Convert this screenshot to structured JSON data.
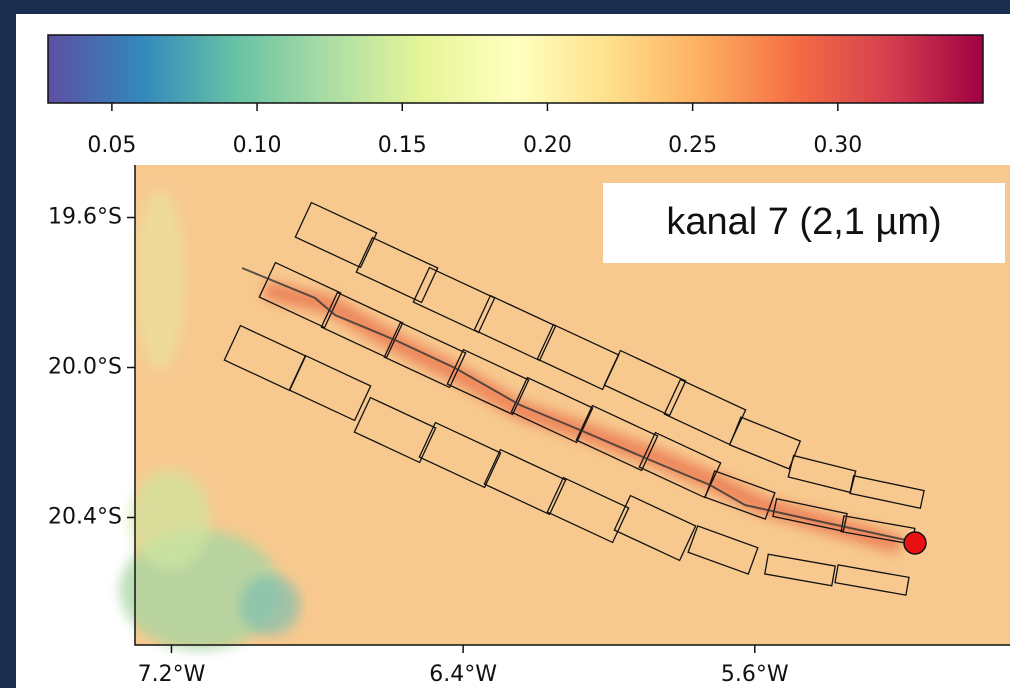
{
  "chart_data": {
    "type": "heatmap",
    "annotation": "kanal 7 (2,1 µm)",
    "colorbar": {
      "lim": [
        0.028,
        0.35
      ],
      "ticks": [
        0.05,
        {
          "value": 0.1,
          "label": "0.10"
        },
        0.15,
        {
          "value": 0.2,
          "label": "0.20"
        },
        0.25,
        {
          "value": 0.3,
          "label": "0.30"
        }
      ]
    },
    "xlim": [
      -7.3,
      -4.9
    ],
    "xticks": [
      {
        "value": -7.2,
        "label": "7.2°W"
      },
      {
        "value": -6.4,
        "label": "6.4°W"
      },
      {
        "value": -5.6,
        "label": "5.6°W"
      }
    ],
    "ylim": [
      -20.74,
      -19.46
    ],
    "yticks": [
      {
        "value": -19.6,
        "label": "19.6°S"
      },
      {
        "value": -20.0,
        "label": "20.0°S"
      },
      {
        "value": -20.4,
        "label": "20.4°S"
      }
    ]
  }
}
